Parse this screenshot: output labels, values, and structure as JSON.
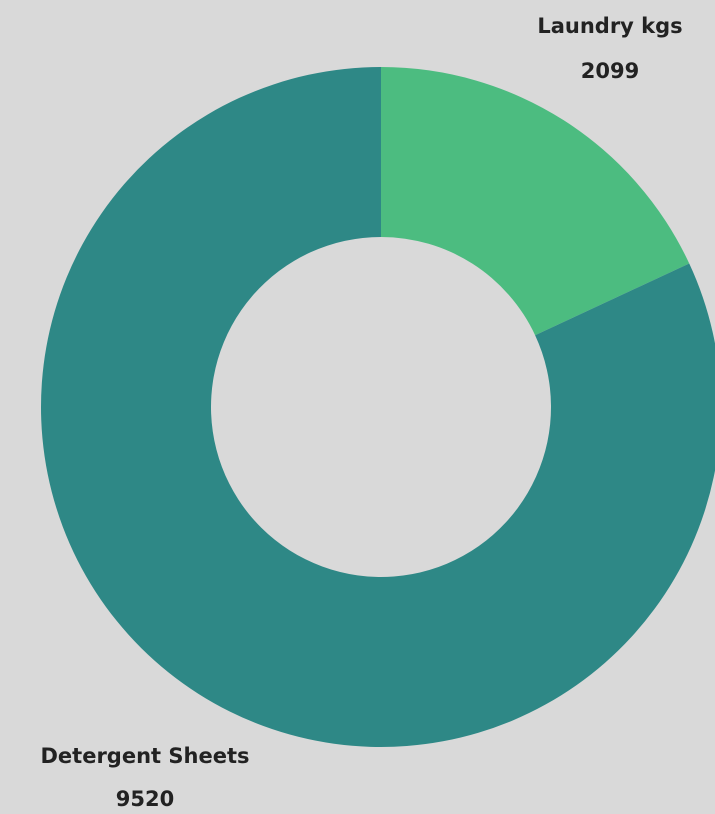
{
  "chart_data": {
    "type": "donut",
    "categories": [
      "Laundry kgs",
      "Detergent Sheets"
    ],
    "values": [
      2099,
      9520
    ],
    "colors": [
      "#4cbc80",
      "#2e8886"
    ]
  }
}
